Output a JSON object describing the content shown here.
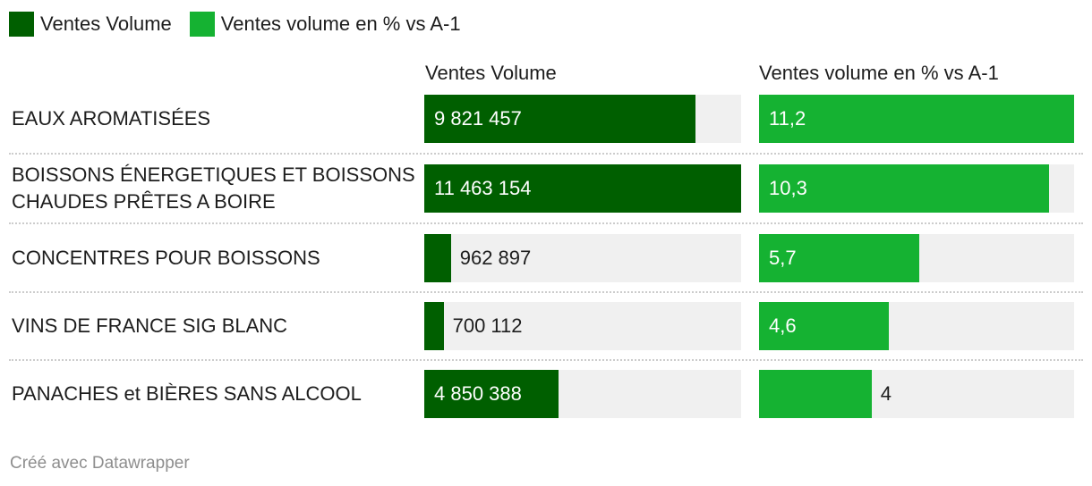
{
  "legend": [
    {
      "label": "Ventes Volume",
      "color": "#005f00"
    },
    {
      "label": "Ventes volume en % vs A-1",
      "color": "#15b232"
    }
  ],
  "footer": "Créé avec Datawrapper",
  "chart_data": {
    "type": "bar",
    "categories": [
      "EAUX AROMATISÉES",
      "BOISSONS ÉNERGETIQUES ET BOISSONS CHAUDES PRÊTES A BOIRE",
      "CONCENTRES POUR BOISSONS",
      "VINS DE FRANCE SIG BLANC",
      "PANACHES et BIÈRES SANS ALCOOL"
    ],
    "series": [
      {
        "name": "Ventes Volume",
        "color": "#005f00",
        "values": [
          9821457,
          11463154,
          962897,
          700112,
          4850388
        ],
        "labels": [
          "9 821 457",
          "11 463 154",
          "962 897",
          "700 112",
          "4 850 388"
        ],
        "max": 11463154
      },
      {
        "name": "Ventes volume en % vs A-1",
        "color": "#15b232",
        "values": [
          11.2,
          10.3,
          5.7,
          4.6,
          4
        ],
        "labels": [
          "11,2",
          "10,3",
          "5,7",
          "4,6",
          "4"
        ],
        "max": 11.2
      }
    ]
  }
}
